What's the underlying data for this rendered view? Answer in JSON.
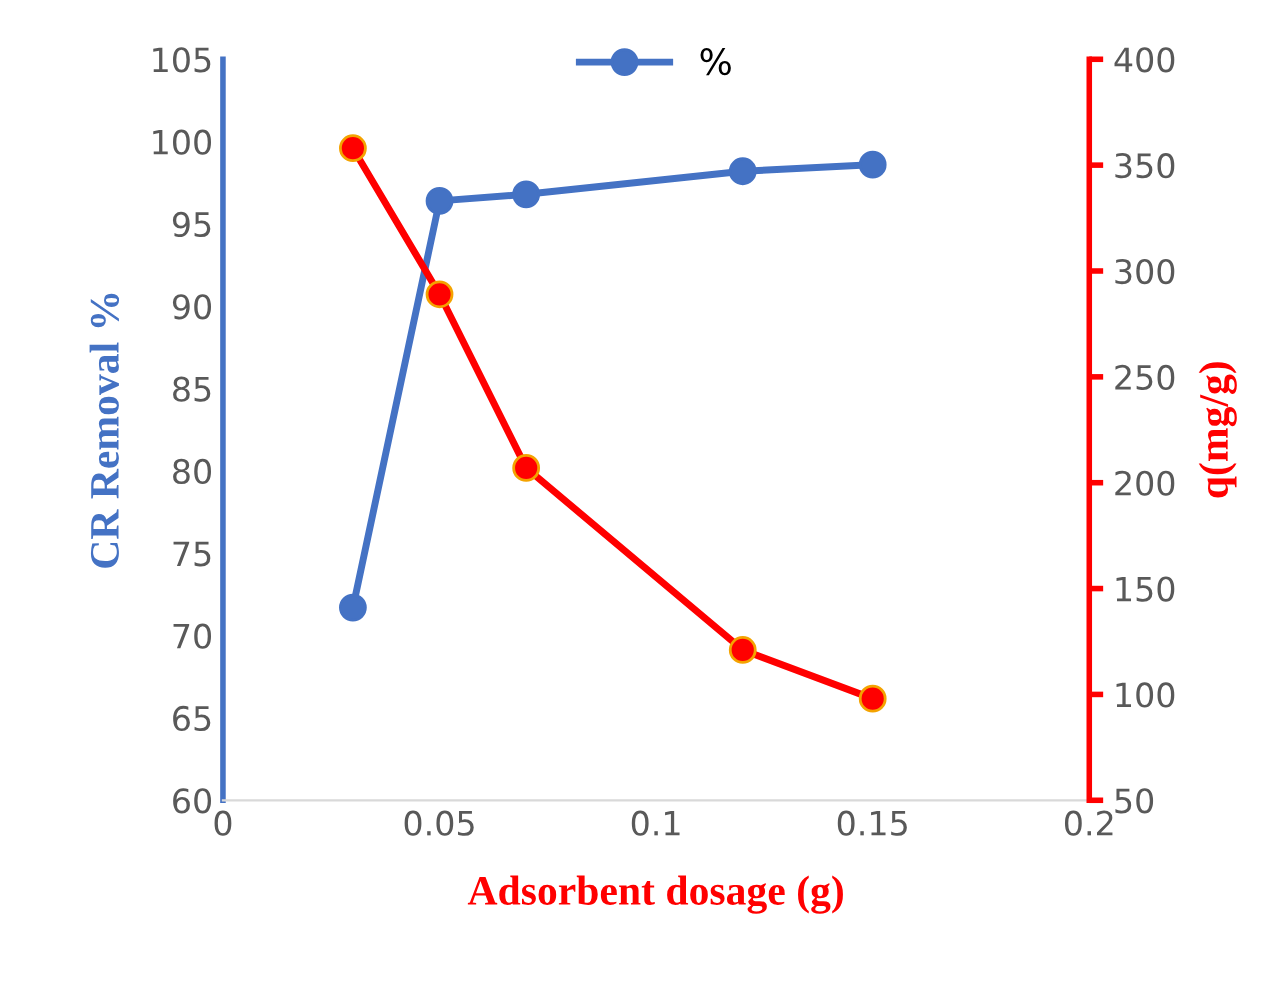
{
  "chart_data": {
    "type": "line",
    "xlabel": "Adsorbent dosage (g)",
    "ylabel": "CR Removal %",
    "y2label": "q(mg/g)",
    "x": [
      0.03,
      0.05,
      0.07,
      0.12,
      0.15
    ],
    "series": [
      {
        "name": "%",
        "color": "#4472c4",
        "values": [
          71.7,
          96.4,
          96.8,
          98.2,
          98.6
        ]
      },
      {
        "color": "#ff0000",
        "axis": "y2",
        "values": [
          358,
          289,
          207,
          121,
          98
        ]
      }
    ],
    "xlim": [
      0,
      0.2
    ],
    "xticks": [
      0,
      0.05,
      0.1,
      0.15,
      0.2
    ],
    "ylim": [
      60,
      105
    ],
    "yticks": [
      60,
      65,
      70,
      75,
      80,
      85,
      90,
      95,
      100,
      105
    ],
    "y2lim": [
      50,
      400
    ],
    "y2ticks": [
      50,
      100,
      150,
      200,
      250,
      300,
      350,
      400
    ],
    "marker": "circle",
    "line_style": "solid",
    "grid": false,
    "legend": "top"
  }
}
